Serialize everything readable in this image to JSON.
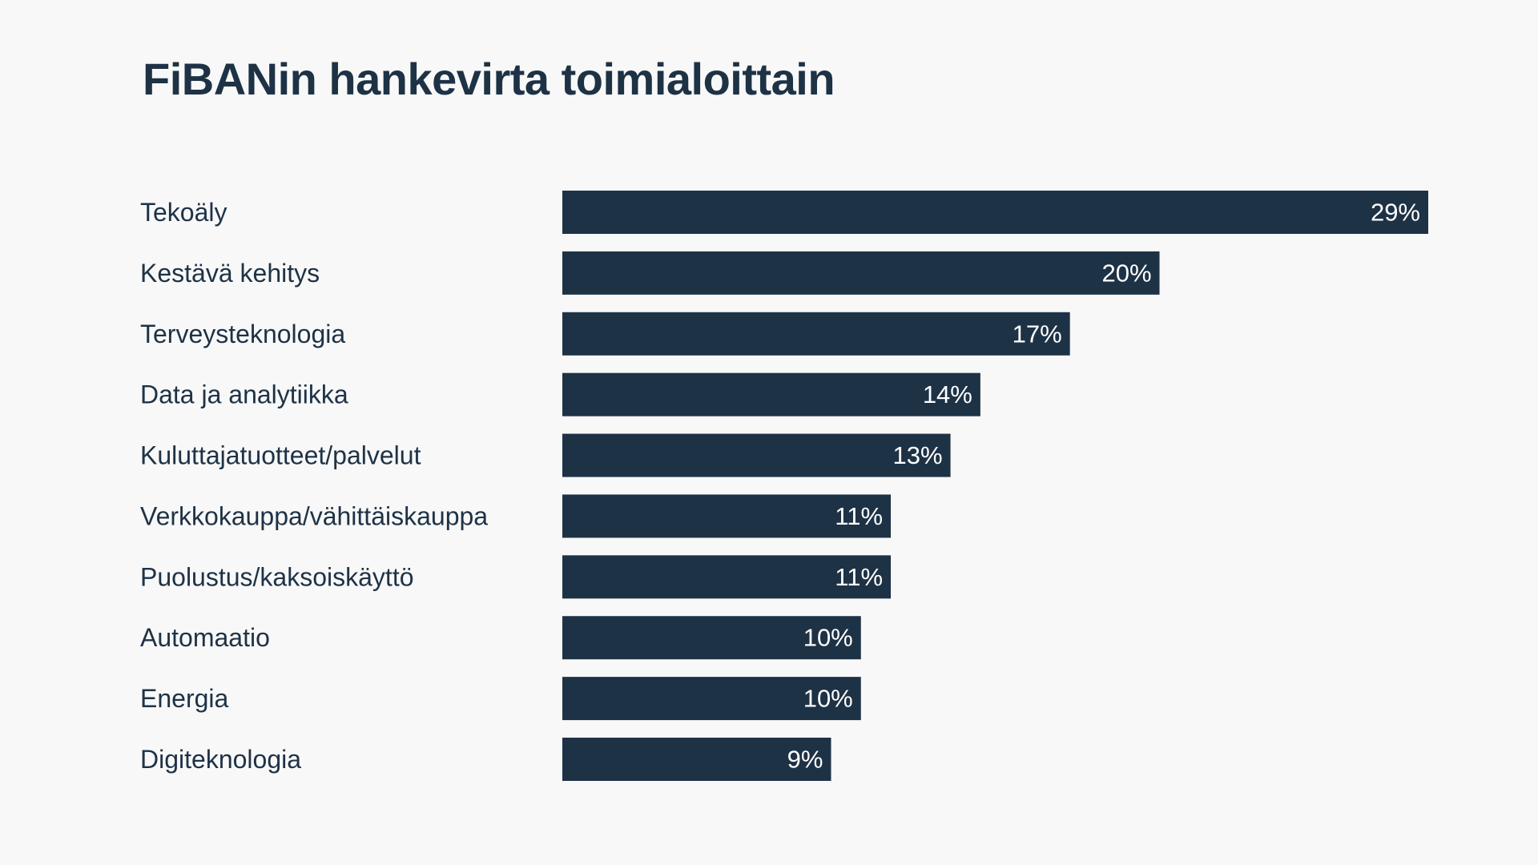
{
  "colors": {
    "background": "#f8f8f8",
    "bar": "#1e3246",
    "text": "#1e3246",
    "value_text": "#ffffff"
  },
  "chart_data": {
    "type": "bar",
    "orientation": "horizontal",
    "title": "FiBANin hankevirta toimialoittain",
    "categories": [
      "Tekoäly",
      "Kestävä kehitys",
      "Terveysteknologia",
      "Data ja analytiikka",
      "Kuluttajatuotteet/palvelut",
      "Verkkokauppa/vähittäiskauppa",
      "Puolustus/kaksoiskäyttö",
      "Automaatio",
      "Energia",
      "Digiteknologia"
    ],
    "values": [
      29,
      20,
      17,
      14,
      13,
      11,
      11,
      10,
      10,
      9
    ],
    "value_labels": [
      "29%",
      "20%",
      "17%",
      "14%",
      "13%",
      "11%",
      "11%",
      "10%",
      "10%",
      "9%"
    ],
    "unit": "%",
    "xlim": [
      0,
      29
    ],
    "grid": false,
    "legend": "none"
  }
}
